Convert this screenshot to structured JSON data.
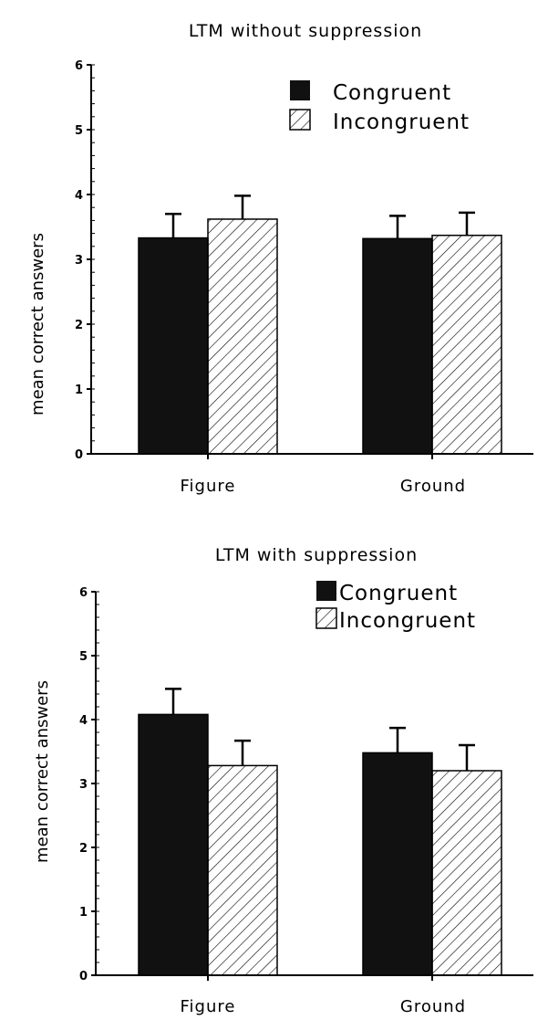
{
  "chart_data": [
    {
      "type": "bar",
      "title": "LTM without suppression",
      "ylabel": "mean  correct  answers",
      "xlabel": "",
      "ylim": [
        0,
        6
      ],
      "yticks": [
        0,
        1,
        2,
        3,
        4,
        5,
        6
      ],
      "categories": [
        "Figure",
        "Ground"
      ],
      "legend_position": "top-right",
      "series": [
        {
          "name": "Congruent",
          "values": [
            3.33,
            3.32
          ],
          "errors": [
            0.37,
            0.35
          ],
          "fill": "#111111",
          "pattern": "solid"
        },
        {
          "name": "Incongruent",
          "values": [
            3.62,
            3.37
          ],
          "errors": [
            0.36,
            0.35
          ],
          "fill": "#ffffff",
          "pattern": "hatched"
        }
      ]
    },
    {
      "type": "bar",
      "title": "LTM with suppression",
      "ylabel": "mean correct answers",
      "xlabel": "",
      "ylim": [
        0,
        6
      ],
      "yticks": [
        0,
        1,
        2,
        3,
        4,
        5,
        6
      ],
      "categories": [
        "Figure",
        "Ground"
      ],
      "legend_position": "top-right",
      "series": [
        {
          "name": "Congruent",
          "values": [
            4.08,
            3.48
          ],
          "errors": [
            0.4,
            0.39
          ],
          "fill": "#111111",
          "pattern": "solid"
        },
        {
          "name": "Incongruent",
          "values": [
            3.28,
            3.2
          ],
          "errors": [
            0.39,
            0.4
          ],
          "fill": "#ffffff",
          "pattern": "hatched"
        }
      ]
    }
  ]
}
